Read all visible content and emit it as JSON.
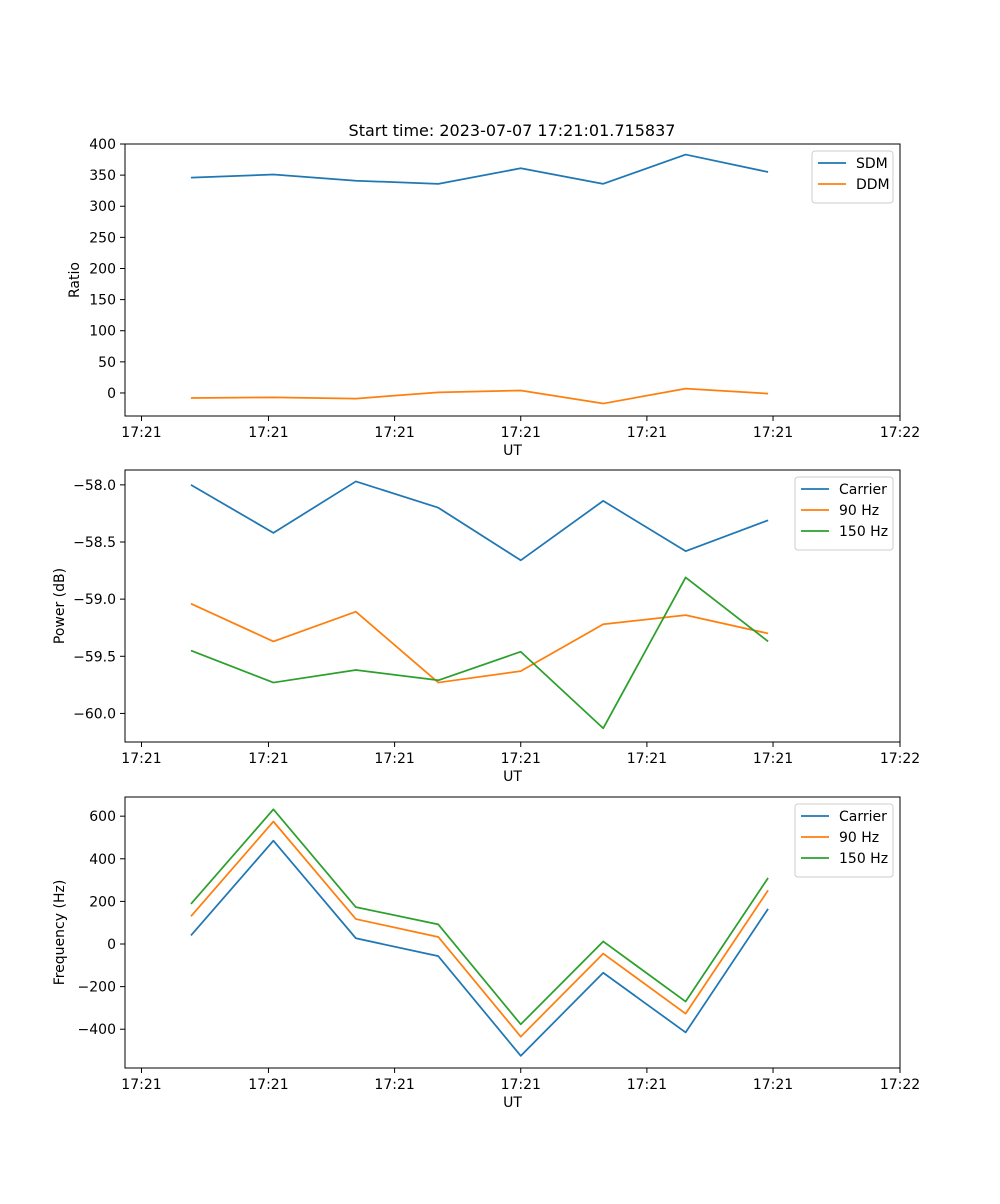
{
  "figure_title": "Start time: 2023-07-07 17:21:01.715837",
  "colors": {
    "blue": "#1f77b4",
    "orange": "#ff7f0e",
    "green": "#2ca02c"
  },
  "chart_data": [
    {
      "type": "line",
      "title": "Start time: 2023-07-07 17:21:01.715837",
      "xlabel": "UT",
      "ylabel": "Ratio",
      "x": [
        1,
        2,
        3,
        4,
        5,
        6,
        7,
        8
      ],
      "xlim": [
        0.2,
        9.6
      ],
      "xticks": [
        0.4,
        1.94,
        3.47,
        5.0,
        6.53,
        8.06,
        9.6
      ],
      "xtick_labels": [
        "17:21",
        "17:21",
        "17:21",
        "17:21",
        "17:21",
        "17:21",
        "17:22"
      ],
      "ylim": [
        -37,
        400
      ],
      "yticks": [
        0,
        50,
        100,
        150,
        200,
        250,
        300,
        350,
        400
      ],
      "ytick_labels": [
        "0",
        "50",
        "100",
        "150",
        "200",
        "250",
        "300",
        "350",
        "400"
      ],
      "legend_position": "top-right",
      "series": [
        {
          "name": "SDM",
          "color": "#1f77b4",
          "values": [
            346,
            351,
            341,
            336,
            361,
            336,
            383,
            355
          ]
        },
        {
          "name": "DDM",
          "color": "#ff7f0e",
          "values": [
            -8,
            -7,
            -9,
            1,
            4,
            -17,
            7,
            -1
          ]
        }
      ]
    },
    {
      "type": "line",
      "title": "",
      "xlabel": "UT",
      "ylabel": "Power (dB)",
      "x": [
        1,
        2,
        3,
        4,
        5,
        6,
        7,
        8
      ],
      "xlim": [
        0.2,
        9.6
      ],
      "xticks": [
        0.4,
        1.94,
        3.47,
        5.0,
        6.53,
        8.06,
        9.6
      ],
      "xtick_labels": [
        "17:21",
        "17:21",
        "17:21",
        "17:21",
        "17:21",
        "17:21",
        "17:22"
      ],
      "ylim": [
        -60.25,
        -57.87
      ],
      "yticks": [
        -60.0,
        -59.5,
        -59.0,
        -58.5,
        -58.0
      ],
      "ytick_labels": [
        "−60.0",
        "−59.5",
        "−59.0",
        "−58.5",
        "−58.0"
      ],
      "legend_position": "top-right",
      "series": [
        {
          "name": "Carrier",
          "color": "#1f77b4",
          "values": [
            -58.0,
            -58.42,
            -57.97,
            -58.2,
            -58.66,
            -58.14,
            -58.58,
            -58.31
          ]
        },
        {
          "name": "90 Hz",
          "color": "#ff7f0e",
          "values": [
            -59.04,
            -59.37,
            -59.11,
            -59.73,
            -59.63,
            -59.22,
            -59.14,
            -59.3
          ]
        },
        {
          "name": "150 Hz",
          "color": "#2ca02c",
          "values": [
            -59.45,
            -59.73,
            -59.62,
            -59.71,
            -59.46,
            -60.13,
            -58.81,
            -59.37
          ]
        }
      ]
    },
    {
      "type": "line",
      "title": "",
      "xlabel": "UT",
      "ylabel": "Frequency (Hz)",
      "x": [
        1,
        2,
        3,
        4,
        5,
        6,
        7,
        8
      ],
      "xlim": [
        0.2,
        9.6
      ],
      "xticks": [
        0.4,
        1.94,
        3.47,
        5.0,
        6.53,
        8.06,
        9.6
      ],
      "xtick_labels": [
        "17:21",
        "17:21",
        "17:21",
        "17:21",
        "17:21",
        "17:21",
        "17:22"
      ],
      "ylim": [
        -582,
        690
      ],
      "yticks": [
        -400,
        -200,
        0,
        200,
        400,
        600
      ],
      "ytick_labels": [
        "−400",
        "−200",
        "0",
        "200",
        "400",
        "600"
      ],
      "legend_position": "top-right",
      "series": [
        {
          "name": "Carrier",
          "color": "#1f77b4",
          "values": [
            40,
            485,
            27,
            -57,
            -525,
            -135,
            -415,
            165
          ]
        },
        {
          "name": "90 Hz",
          "color": "#ff7f0e",
          "values": [
            130,
            575,
            117,
            33,
            -435,
            -45,
            -327,
            252
          ]
        },
        {
          "name": "150 Hz",
          "color": "#2ca02c",
          "values": [
            188,
            632,
            173,
            92,
            -377,
            12,
            -270,
            310
          ]
        }
      ]
    }
  ]
}
